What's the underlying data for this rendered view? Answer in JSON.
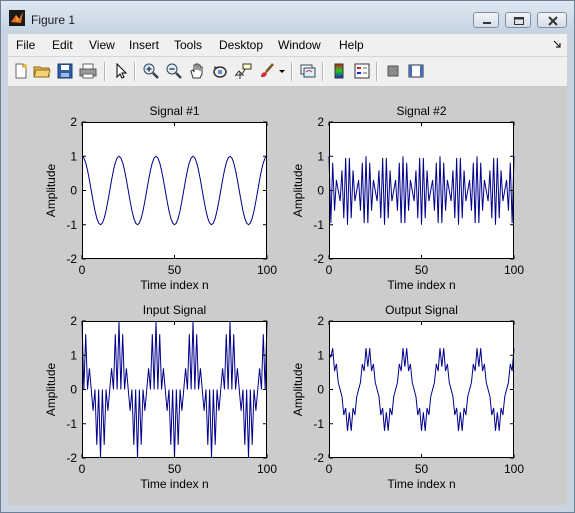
{
  "window": {
    "title": "Figure 1"
  },
  "menu": [
    "File",
    "Edit",
    "View",
    "Insert",
    "Tools",
    "Desktop",
    "Window",
    "Help"
  ],
  "toolbar_icons": [
    "new-figure-icon",
    "open-file-icon",
    "save-icon",
    "print-icon",
    "select-arrow-icon",
    "zoom-in-icon",
    "zoom-out-icon",
    "pan-hand-icon",
    "rotate-3d-icon",
    "data-cursor-icon",
    "brush-icon",
    "brush-dropdown-icon",
    "link-plot-icon",
    "colorbar-icon",
    "legend-icon",
    "hide-plot-tools-icon",
    "show-plot-tools-icon"
  ],
  "colors": {
    "line": "#00008b",
    "figure_bg": "#cccccc",
    "axes_bg": "#ffffff"
  },
  "chart_data": [
    {
      "type": "line",
      "title": "Signal #1",
      "xlabel": "Time index n",
      "ylabel": "Amplitude",
      "xlim": [
        0,
        100
      ],
      "ylim": [
        -2,
        2
      ],
      "xticks": [
        "0",
        "50",
        "100"
      ],
      "yticks": [
        "2",
        "1",
        "0",
        "-1",
        "-2"
      ],
      "series": [
        {
          "formula": "cos(2*pi*n/20)",
          "n": [
            0,
            100
          ]
        }
      ]
    },
    {
      "type": "line",
      "title": "Signal #2",
      "xlabel": "Time index n",
      "ylabel": "Amplitude",
      "xlim": [
        0,
        100
      ],
      "ylim": [
        -2,
        2
      ],
      "xticks": [
        "0",
        "50",
        "100"
      ],
      "yticks": [
        "2",
        "1",
        "0",
        "-1",
        "-2"
      ],
      "series": [
        {
          "formula": "cos(2*pi*0.45*n)",
          "n": [
            0,
            100
          ]
        }
      ]
    },
    {
      "type": "line",
      "title": "Input Signal",
      "xlabel": "Time index n",
      "ylabel": "Amplitude",
      "xlim": [
        0,
        100
      ],
      "ylim": [
        -2,
        2
      ],
      "xticks": [
        "0",
        "50",
        "100"
      ],
      "yticks": [
        "2",
        "1",
        "0",
        "-1",
        "-2"
      ],
      "series": [
        {
          "formula": "cos(2*pi*n/20) + cos(2*pi*0.45*n)",
          "n": [
            0,
            100
          ]
        }
      ]
    },
    {
      "type": "line",
      "title": "Output Signal",
      "xlabel": "Time index n",
      "ylabel": "Amplitude",
      "xlim": [
        0,
        100
      ],
      "ylim": [
        -2,
        2
      ],
      "xticks": [
        "0",
        "50",
        "100"
      ],
      "yticks": [
        "2",
        "1",
        "0",
        "-1",
        "-2"
      ],
      "series": [
        {
          "formula": "lowpass(input), approx cos(2*pi*(n-1)/20) with small ripple",
          "n": [
            0,
            100
          ]
        }
      ]
    }
  ]
}
